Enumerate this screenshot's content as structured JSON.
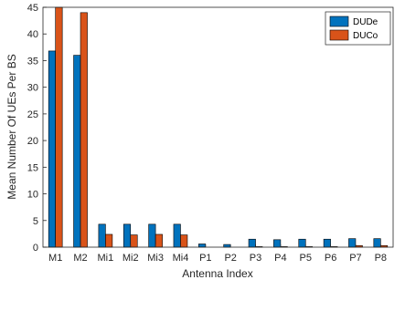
{
  "chart_data": {
    "type": "bar",
    "xlabel": "Antenna Index",
    "ylabel": "Mean Number Of UEs Per BS",
    "ylim": [
      0,
      45
    ],
    "yticks": [
      0,
      5,
      10,
      15,
      20,
      25,
      30,
      35,
      40,
      45
    ],
    "grid": false,
    "legend_position": "top-right",
    "categories": [
      "M1",
      "M2",
      "Mi1",
      "Mi2",
      "Mi3",
      "Mi4",
      "P1",
      "P2",
      "P3",
      "P4",
      "P5",
      "P6",
      "P7",
      "P8"
    ],
    "series": [
      {
        "name": "DUDe",
        "color": "#0072BD",
        "values": [
          36.8,
          36.0,
          4.3,
          4.3,
          4.3,
          4.3,
          0.6,
          0.5,
          1.5,
          1.4,
          1.5,
          1.5,
          1.6,
          1.6
        ]
      },
      {
        "name": "DUCo",
        "color": "#D95319",
        "values": [
          45.0,
          44.0,
          2.4,
          2.3,
          2.4,
          2.3,
          0.0,
          0.0,
          0.1,
          0.1,
          0.1,
          0.1,
          0.3,
          0.3
        ]
      }
    ]
  }
}
